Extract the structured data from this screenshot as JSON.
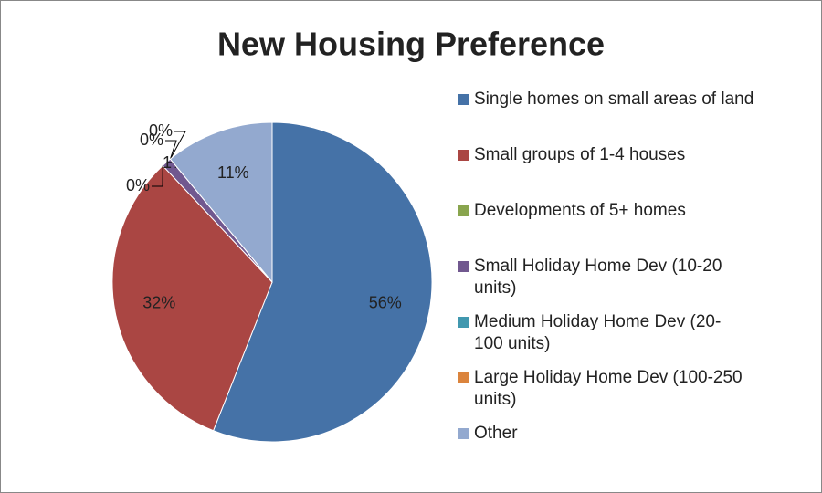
{
  "chart_data": {
    "type": "pie",
    "title": "New Housing Preference",
    "categories": [
      "Single homes on small areas of land",
      "Small groups of 1-4 houses",
      "Developments of 5+ homes",
      "Small Holiday Home Dev (10-20 units)",
      "Medium Holiday Home Dev (20-100 units)",
      "Large Holiday Home Dev (100-250 units)",
      "Other"
    ],
    "values": [
      56,
      32,
      0,
      1,
      0,
      0,
      11
    ],
    "value_labels": [
      "56%",
      "32%",
      "0%",
      "1%",
      "0%",
      "0%",
      "11%"
    ],
    "colors": [
      "#4572a7",
      "#aa4643",
      "#89a54e",
      "#71588f",
      "#4198af",
      "#db843d",
      "#93a9cf"
    ],
    "legend": "right"
  }
}
